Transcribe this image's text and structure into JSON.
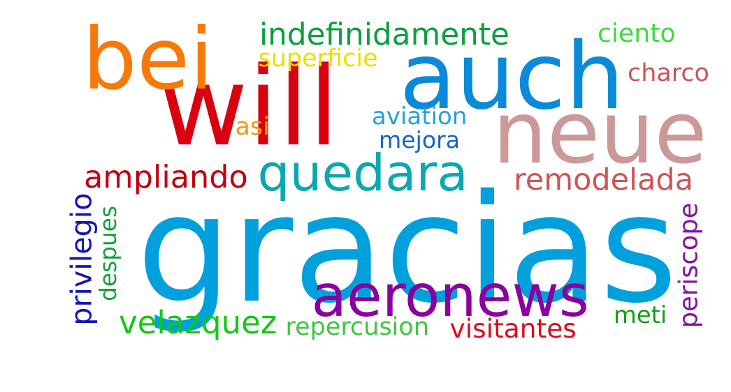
{
  "words": [
    {
      "text": "gracias",
      "color": "#00a0dc"
    },
    {
      "text": "neue",
      "color": "#cc9999"
    },
    {
      "text": "auch",
      "color": "#0a8ad8"
    },
    {
      "text": "will",
      "color": "#d90010"
    },
    {
      "text": "bei",
      "color": "#f57a0a"
    },
    {
      "text": "aeronews",
      "color": "#8a00a0"
    },
    {
      "text": "quedara",
      "color": "#0aa8b0"
    },
    {
      "text": "indefinidamente",
      "color": "#0aa040"
    },
    {
      "text": "ampliando",
      "color": "#c00010"
    },
    {
      "text": "remodelada",
      "color": "#cc5555"
    },
    {
      "text": "velazquez",
      "color": "#14c814"
    },
    {
      "text": "superficie",
      "color": "#e8e000"
    },
    {
      "text": "ciento",
      "color": "#3cdc3c"
    },
    {
      "text": "charco",
      "color": "#cc5555"
    },
    {
      "text": "aviation",
      "color": "#28a0d8"
    },
    {
      "text": "mejora",
      "color": "#1464c8"
    },
    {
      "text": "asi",
      "color": "#f59a14"
    },
    {
      "text": "repercusion",
      "color": "#3cc83c"
    },
    {
      "text": "visitantes",
      "color": "#dc0a1e"
    },
    {
      "text": "meti",
      "color": "#14a014"
    },
    {
      "text": "privilegio",
      "color": "#1414b4"
    },
    {
      "text": "despues",
      "color": "#14a03c"
    },
    {
      "text": "periscope",
      "color": "#8214a0"
    }
  ]
}
